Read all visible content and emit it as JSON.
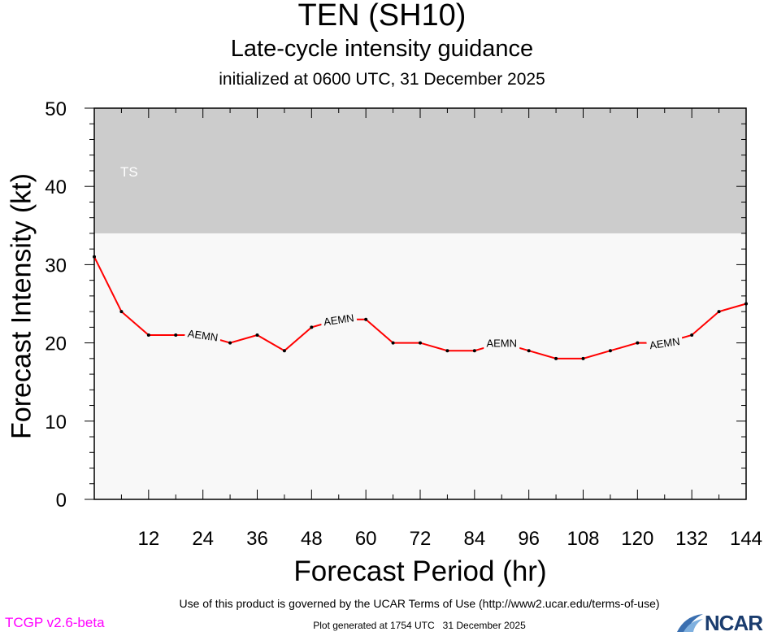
{
  "header": {
    "title": "TEN (SH10)",
    "subtitle": "Late-cycle intensity guidance",
    "init_line": "initialized at 0600 UTC, 31 December 2025"
  },
  "chart_data": {
    "type": "line",
    "xlabel": "Forecast Period (hr)",
    "ylabel": "Forecast Intensity (kt)",
    "xlim": [
      0,
      144
    ],
    "ylim": [
      0,
      50
    ],
    "xticks": [
      12,
      24,
      36,
      48,
      60,
      72,
      84,
      96,
      108,
      120,
      132,
      144
    ],
    "yticks": [
      0,
      10,
      20,
      30,
      40,
      50
    ],
    "bands": [
      {
        "label": "TS",
        "from": 34,
        "to": 50,
        "color": "#cccccc"
      }
    ],
    "series": [
      {
        "name": "AEMN",
        "color": "#ff0000",
        "label_at_hours": [
          24,
          54,
          90,
          126
        ],
        "x": [
          0,
          6,
          12,
          18,
          24,
          30,
          36,
          42,
          48,
          54,
          60,
          66,
          72,
          78,
          84,
          90,
          96,
          102,
          108,
          114,
          120,
          126,
          132,
          138,
          144
        ],
        "y": [
          31,
          24,
          21,
          21,
          21,
          20,
          21,
          19,
          22,
          23,
          23,
          20,
          20,
          19,
          19,
          20,
          19,
          18,
          18,
          19,
          20,
          20,
          21,
          24,
          25
        ]
      }
    ]
  },
  "footer": {
    "terms": "Use of this product is governed by the UCAR Terms of Use (http://www2.ucar.edu/terms-of-use)",
    "version": "TCGP v2.6-beta",
    "generated": "Plot generated at 1754 UTC   31 December 2025",
    "logo_text": "NCAR"
  }
}
